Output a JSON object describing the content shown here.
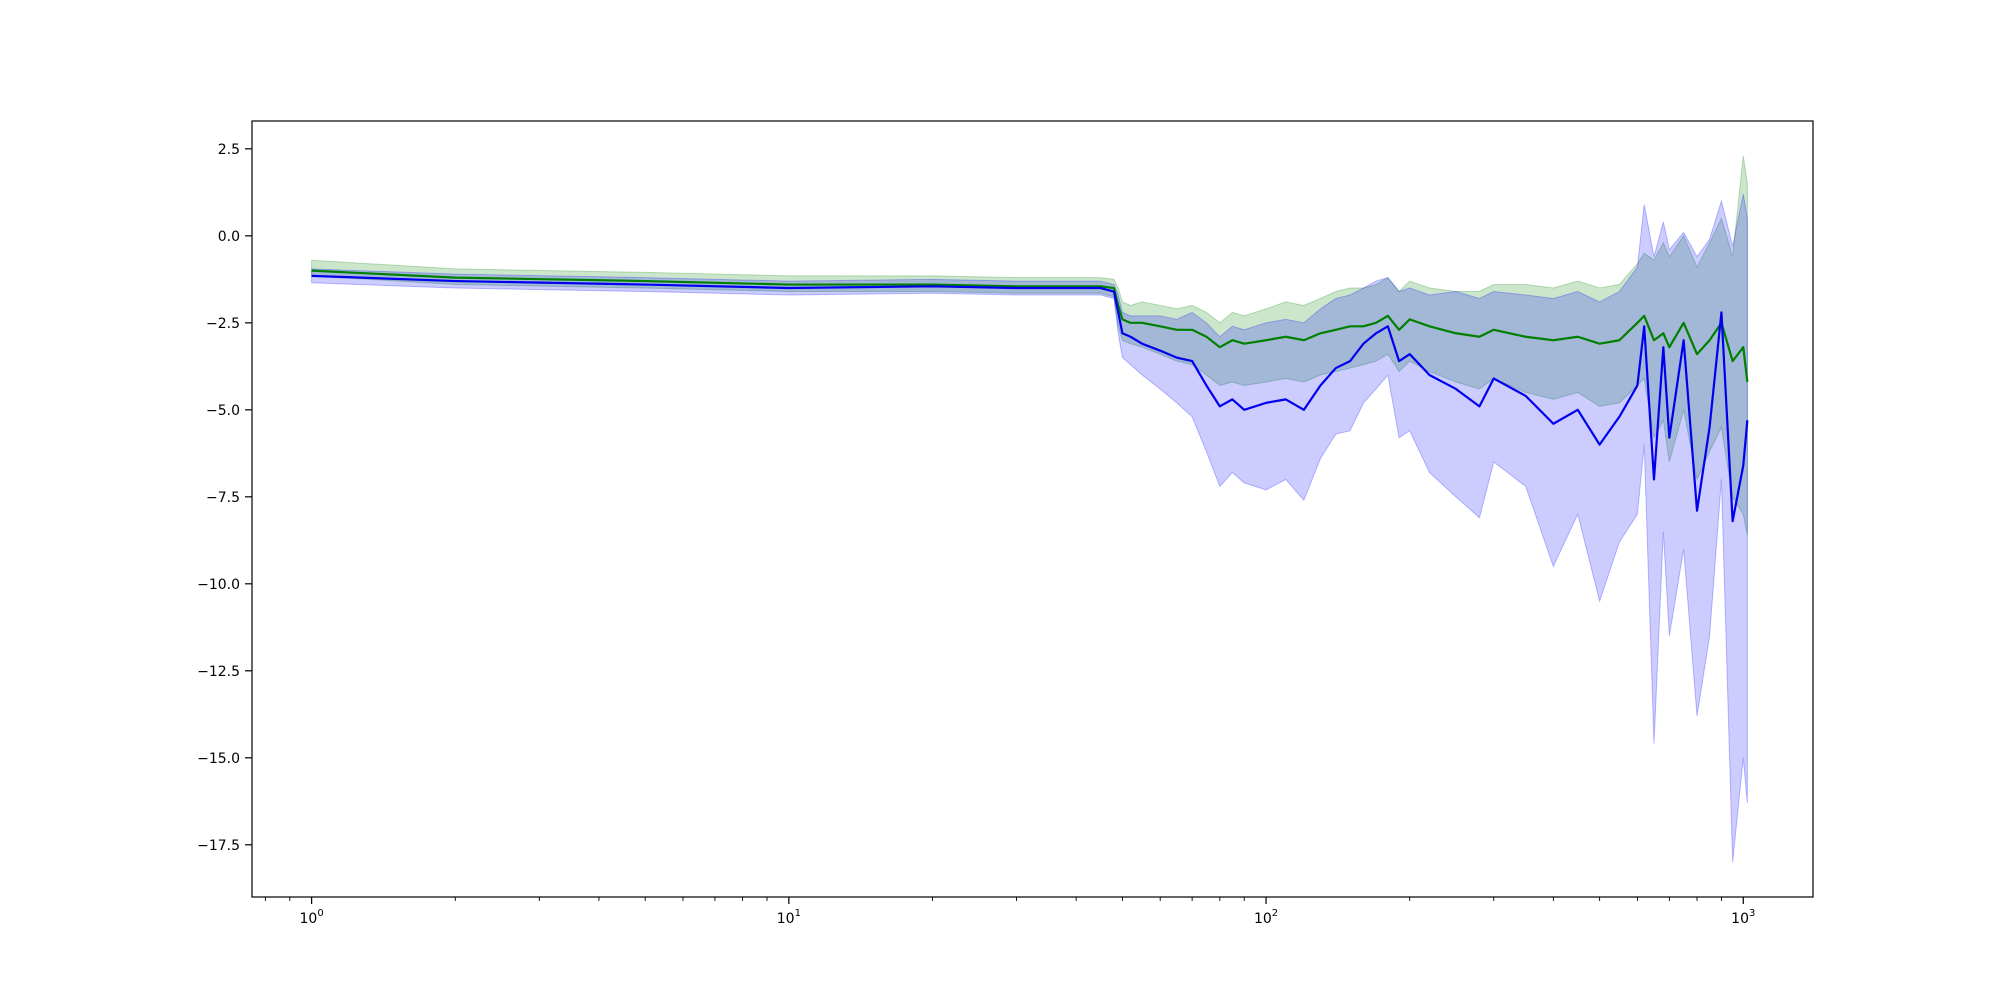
{
  "chart_data": {
    "type": "line",
    "title": "",
    "xlabel": "",
    "ylabel": "",
    "x_scale": "log",
    "xlim": [
      0.75,
      1400
    ],
    "ylim": [
      -19,
      3.3
    ],
    "grid": false,
    "legend": "none",
    "x_ticks": [
      {
        "value": 1,
        "base": "10",
        "exp": "0"
      },
      {
        "value": 10,
        "base": "10",
        "exp": "1"
      },
      {
        "value": 100,
        "base": "10",
        "exp": "2"
      },
      {
        "value": 1000,
        "base": "10",
        "exp": "3"
      }
    ],
    "y_ticks": [
      {
        "value": 2.5,
        "label": "2.5"
      },
      {
        "value": 0,
        "label": "0.0"
      },
      {
        "value": -2.5,
        "label": "−2.5"
      },
      {
        "value": -5,
        "label": "−5.0"
      },
      {
        "value": -7.5,
        "label": "−7.5"
      },
      {
        "value": -10,
        "label": "−10.0"
      },
      {
        "value": -12.5,
        "label": "−12.5"
      },
      {
        "value": -15,
        "label": "−15.0"
      },
      {
        "value": -17.5,
        "label": "−17.5"
      }
    ],
    "series": [
      {
        "color": "#008000",
        "band_color": "#008000",
        "band_opacity": 0.2,
        "x": [
          1,
          2,
          5,
          10,
          20,
          30,
          45,
          48,
          49,
          50,
          52,
          55,
          60,
          65,
          70,
          75,
          80,
          85,
          90,
          100,
          110,
          120,
          130,
          140,
          150,
          160,
          170,
          180,
          190,
          200,
          220,
          250,
          280,
          300,
          350,
          400,
          450,
          500,
          550,
          600,
          620,
          650,
          680,
          700,
          750,
          800,
          850,
          900,
          950,
          1000,
          1020
        ],
        "y": [
          -1.0,
          -1.2,
          -1.3,
          -1.4,
          -1.4,
          -1.45,
          -1.45,
          -1.5,
          -2.0,
          -2.4,
          -2.5,
          -2.5,
          -2.6,
          -2.7,
          -2.7,
          -2.9,
          -3.2,
          -3.0,
          -3.1,
          -3.0,
          -2.9,
          -3.0,
          -2.8,
          -2.7,
          -2.6,
          -2.6,
          -2.5,
          -2.3,
          -2.7,
          -2.4,
          -2.6,
          -2.8,
          -2.9,
          -2.7,
          -2.9,
          -3.0,
          -2.9,
          -3.1,
          -3.0,
          -2.5,
          -2.3,
          -3.0,
          -2.8,
          -3.2,
          -2.5,
          -3.4,
          -3.0,
          -2.5,
          -3.6,
          -3.2,
          -4.2
        ],
        "lower": [
          -1.15,
          -1.4,
          -1.5,
          -1.6,
          -1.6,
          -1.65,
          -1.65,
          -1.75,
          -2.6,
          -3.0,
          -3.1,
          -3.2,
          -3.4,
          -3.6,
          -3.7,
          -4.0,
          -4.3,
          -4.2,
          -4.3,
          -4.2,
          -4.1,
          -4.2,
          -4.0,
          -3.9,
          -3.8,
          -3.7,
          -3.6,
          -3.4,
          -3.9,
          -3.6,
          -3.9,
          -4.2,
          -4.4,
          -4.1,
          -4.5,
          -4.7,
          -4.5,
          -4.9,
          -4.8,
          -4.3,
          -4.1,
          -5.8,
          -5.3,
          -6.5,
          -5.0,
          -7.0,
          -6.2,
          -5.5,
          -7.5,
          -8.0,
          -8.6
        ],
        "upper": [
          -0.7,
          -0.95,
          -1.05,
          -1.15,
          -1.15,
          -1.2,
          -1.2,
          -1.25,
          -1.5,
          -1.9,
          -2.0,
          -1.9,
          -2.0,
          -2.1,
          -2.0,
          -2.2,
          -2.5,
          -2.2,
          -2.3,
          -2.1,
          -1.9,
          -2.0,
          -1.8,
          -1.6,
          -1.5,
          -1.5,
          -1.4,
          -1.2,
          -1.6,
          -1.3,
          -1.5,
          -1.6,
          -1.6,
          -1.4,
          -1.4,
          -1.5,
          -1.3,
          -1.5,
          -1.4,
          -0.8,
          -0.5,
          -0.7,
          -0.2,
          -0.6,
          0.0,
          -0.9,
          -0.2,
          0.5,
          -0.6,
          2.3,
          1.5
        ]
      },
      {
        "color": "#0000ee",
        "band_color": "#0000ff",
        "band_opacity": 0.2,
        "x": [
          1,
          2,
          5,
          10,
          20,
          30,
          45,
          48,
          49,
          50,
          52,
          55,
          60,
          65,
          70,
          75,
          80,
          85,
          90,
          100,
          110,
          120,
          130,
          140,
          150,
          160,
          170,
          180,
          190,
          200,
          220,
          250,
          280,
          300,
          350,
          400,
          450,
          500,
          550,
          600,
          620,
          650,
          680,
          700,
          750,
          800,
          850,
          900,
          950,
          1000,
          1020
        ],
        "y": [
          -1.15,
          -1.3,
          -1.4,
          -1.5,
          -1.45,
          -1.5,
          -1.5,
          -1.6,
          -2.2,
          -2.8,
          -2.9,
          -3.1,
          -3.3,
          -3.5,
          -3.6,
          -4.3,
          -4.9,
          -4.7,
          -5.0,
          -4.8,
          -4.7,
          -5.0,
          -4.3,
          -3.8,
          -3.6,
          -3.1,
          -2.8,
          -2.6,
          -3.6,
          -3.4,
          -4.0,
          -4.4,
          -4.9,
          -4.1,
          -4.6,
          -5.4,
          -5.0,
          -6.0,
          -5.2,
          -4.3,
          -2.6,
          -7.0,
          -3.2,
          -5.8,
          -3.0,
          -7.9,
          -5.5,
          -2.2,
          -8.2,
          -6.6,
          -5.3
        ],
        "lower": [
          -1.35,
          -1.5,
          -1.6,
          -1.7,
          -1.65,
          -1.7,
          -1.7,
          -1.8,
          -2.8,
          -3.5,
          -3.7,
          -4.0,
          -4.4,
          -4.8,
          -5.2,
          -6.2,
          -7.2,
          -6.8,
          -7.1,
          -7.3,
          -7.0,
          -7.6,
          -6.4,
          -5.7,
          -5.6,
          -4.8,
          -4.4,
          -4.0,
          -5.8,
          -5.6,
          -6.8,
          -7.5,
          -8.1,
          -6.5,
          -7.2,
          -9.5,
          -8.0,
          -10.5,
          -8.8,
          -8.0,
          -6.0,
          -14.6,
          -8.5,
          -11.5,
          -9.0,
          -13.8,
          -11.5,
          -7.0,
          -18.0,
          -15.0,
          -16.3
        ],
        "upper": [
          -0.95,
          -1.1,
          -1.2,
          -1.3,
          -1.25,
          -1.3,
          -1.3,
          -1.4,
          -1.7,
          -2.2,
          -2.3,
          -2.3,
          -2.3,
          -2.4,
          -2.2,
          -2.5,
          -2.9,
          -2.6,
          -2.7,
          -2.5,
          -2.4,
          -2.5,
          -2.1,
          -1.8,
          -1.7,
          -1.5,
          -1.3,
          -1.2,
          -1.6,
          -1.5,
          -1.7,
          -1.6,
          -1.8,
          -1.6,
          -1.7,
          -1.8,
          -1.6,
          -1.9,
          -1.6,
          -0.9,
          0.9,
          -0.6,
          0.4,
          -0.4,
          0.1,
          -0.6,
          -0.1,
          1.0,
          -0.3,
          1.2,
          0.5
        ]
      }
    ]
  }
}
